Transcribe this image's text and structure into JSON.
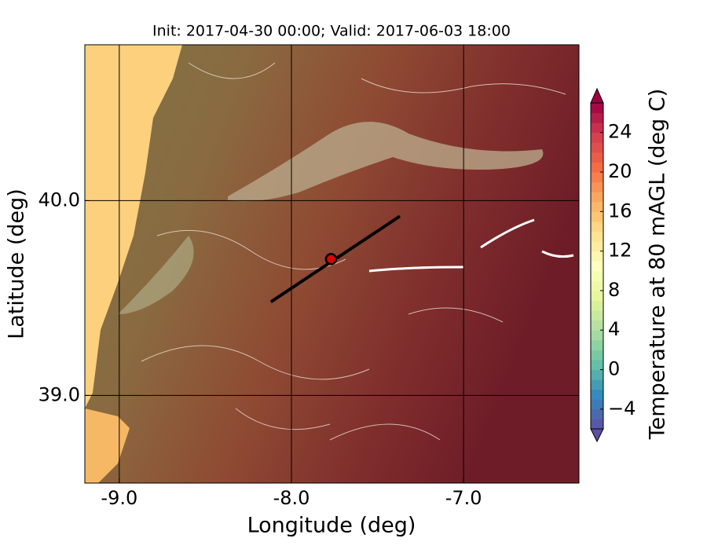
{
  "chart_data": {
    "type": "map",
    "title": "Init: 2017-04-30 00:00; Valid: 2017-06-03 18:00",
    "x_label": "Longitude (deg)",
    "y_label": "Latitude (deg)",
    "xlim": [
      -9.2,
      -6.33
    ],
    "ylim": [
      38.55,
      40.8
    ],
    "xticks": [
      {
        "value": -9,
        "label": "-9.0"
      },
      {
        "value": -8,
        "label": "-8.0"
      },
      {
        "value": -7,
        "label": "-7.0"
      }
    ],
    "yticks": [
      {
        "value": 39,
        "label": "39.0"
      },
      {
        "value": 40,
        "label": "40.0"
      }
    ],
    "grid": true,
    "section_line": {
      "lon": [
        -8.12,
        -7.37
      ],
      "lat": [
        39.48,
        39.92
      ],
      "color": "#000000"
    },
    "point": {
      "lon": -7.77,
      "lat": 39.7,
      "color": "#e00000"
    },
    "colorbar": {
      "label": "Temperature at 80 mAGL (deg C)",
      "clim": [
        -6,
        27
      ],
      "ticks": [
        {
          "value": -4,
          "label": "−4"
        },
        0,
        4,
        8,
        12,
        16,
        20,
        24
      ],
      "colors": [
        "#5e4fa2",
        "#3288bd",
        "#66c2a5",
        "#abdda4",
        "#e6f598",
        "#ffffbf",
        "#fee08b",
        "#fdae61",
        "#f46d43",
        "#d53e4f",
        "#9e0142"
      ]
    }
  }
}
